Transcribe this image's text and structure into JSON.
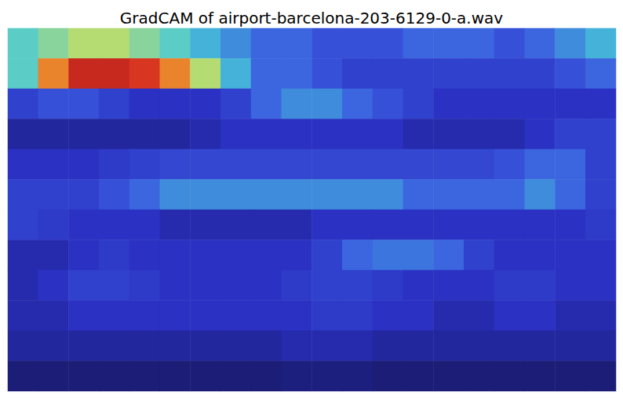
{
  "chart_data": {
    "type": "heatmap",
    "title": "GradCAM of airport-barcelona-203-6129-0-a.wav",
    "tick_labels": false,
    "zlim": [
      0,
      1
    ],
    "cells": [
      [
        0.45,
        0.5,
        0.55,
        0.55,
        0.5,
        0.45,
        0.4,
        0.35,
        0.3,
        0.3,
        0.25,
        0.25,
        0.25,
        0.3,
        0.3,
        0.3,
        0.25,
        0.3,
        0.35,
        0.4
      ],
      [
        0.45,
        0.75,
        0.9,
        0.9,
        0.85,
        0.75,
        0.55,
        0.4,
        0.3,
        0.3,
        0.25,
        0.2,
        0.2,
        0.2,
        0.2,
        0.2,
        0.2,
        0.2,
        0.25,
        0.3
      ],
      [
        0.2,
        0.25,
        0.25,
        0.2,
        0.15,
        0.15,
        0.15,
        0.2,
        0.3,
        0.35,
        0.35,
        0.3,
        0.25,
        0.2,
        0.15,
        0.15,
        0.15,
        0.15,
        0.15,
        0.15
      ],
      [
        0.1,
        0.1,
        0.1,
        0.1,
        0.1,
        0.1,
        0.12,
        0.15,
        0.15,
        0.15,
        0.15,
        0.15,
        0.15,
        0.12,
        0.12,
        0.12,
        0.12,
        0.15,
        0.2,
        0.2
      ],
      [
        0.15,
        0.15,
        0.15,
        0.18,
        0.2,
        0.22,
        0.22,
        0.22,
        0.22,
        0.22,
        0.22,
        0.22,
        0.22,
        0.22,
        0.22,
        0.22,
        0.25,
        0.3,
        0.3,
        0.2
      ],
      [
        0.2,
        0.2,
        0.2,
        0.25,
        0.3,
        0.35,
        0.35,
        0.35,
        0.35,
        0.35,
        0.35,
        0.35,
        0.35,
        0.3,
        0.3,
        0.3,
        0.3,
        0.35,
        0.3,
        0.2
      ],
      [
        0.2,
        0.18,
        0.15,
        0.15,
        0.15,
        0.12,
        0.12,
        0.12,
        0.12,
        0.12,
        0.15,
        0.15,
        0.15,
        0.15,
        0.15,
        0.15,
        0.15,
        0.15,
        0.15,
        0.18
      ],
      [
        0.12,
        0.12,
        0.15,
        0.18,
        0.15,
        0.15,
        0.15,
        0.15,
        0.15,
        0.15,
        0.2,
        0.3,
        0.32,
        0.32,
        0.3,
        0.2,
        0.15,
        0.15,
        0.15,
        0.15
      ],
      [
        0.12,
        0.15,
        0.2,
        0.2,
        0.18,
        0.15,
        0.15,
        0.15,
        0.15,
        0.18,
        0.2,
        0.2,
        0.18,
        0.15,
        0.15,
        0.15,
        0.18,
        0.18,
        0.15,
        0.15
      ],
      [
        0.12,
        0.12,
        0.15,
        0.15,
        0.15,
        0.15,
        0.15,
        0.15,
        0.15,
        0.15,
        0.18,
        0.18,
        0.15,
        0.15,
        0.12,
        0.12,
        0.15,
        0.15,
        0.12,
        0.12
      ],
      [
        0.1,
        0.1,
        0.1,
        0.1,
        0.1,
        0.1,
        0.1,
        0.1,
        0.1,
        0.12,
        0.12,
        0.12,
        0.1,
        0.1,
        0.1,
        0.1,
        0.1,
        0.1,
        0.1,
        0.1
      ],
      [
        0.05,
        0.05,
        0.05,
        0.05,
        0.05,
        0.05,
        0.05,
        0.05,
        0.05,
        0.06,
        0.06,
        0.06,
        0.05,
        0.05,
        0.05,
        0.05,
        0.05,
        0.05,
        0.05,
        0.05
      ]
    ]
  }
}
